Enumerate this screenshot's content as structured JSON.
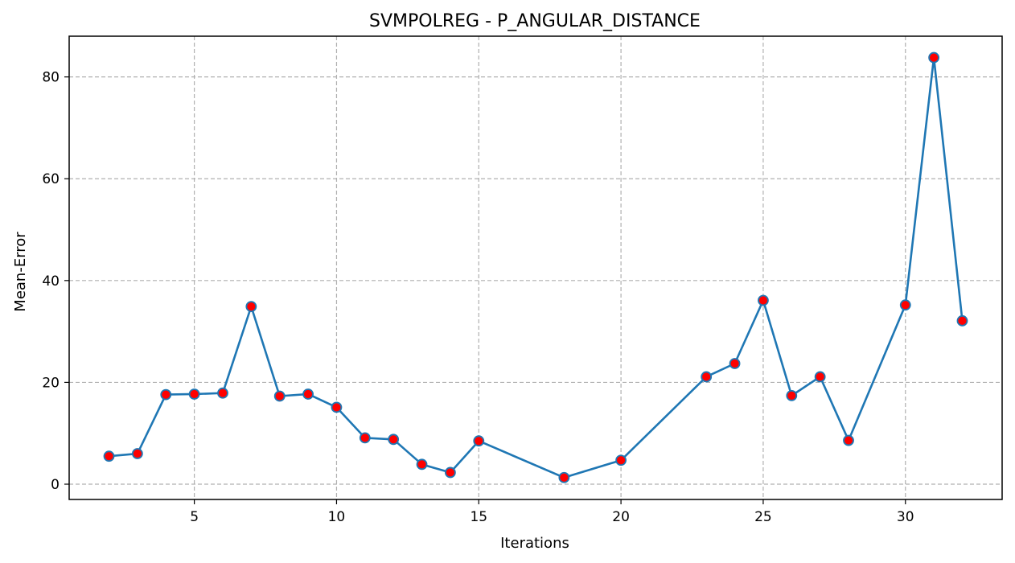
{
  "chart_data": {
    "type": "line",
    "title": "SVMPOLREG - P_ANGULAR_DISTANCE",
    "xlabel": "Iterations",
    "ylabel": "Mean-Error",
    "xlim": [
      0.6,
      33.4
    ],
    "ylim": [
      -3.0,
      88.0
    ],
    "xticks": [
      5,
      10,
      15,
      20,
      25,
      30
    ],
    "yticks": [
      0,
      20,
      40,
      60,
      80
    ],
    "grid": true,
    "line_color": "#1f77b4",
    "marker_color": "#ff0000",
    "marker_edge_color": "#1f77b4",
    "series": [
      {
        "x": [
          2,
          3,
          4,
          5,
          6,
          7,
          8,
          9,
          10,
          11,
          12,
          13,
          14,
          15,
          18,
          20,
          23,
          24,
          25,
          26,
          27,
          28,
          30,
          31,
          32
        ],
        "y": [
          5.5,
          6.0,
          17.6,
          17.7,
          17.9,
          34.9,
          17.3,
          17.7,
          15.1,
          9.1,
          8.8,
          3.9,
          2.3,
          8.5,
          1.3,
          4.7,
          21.1,
          23.7,
          36.1,
          17.4,
          21.1,
          8.6,
          35.2,
          83.8,
          32.1
        ]
      }
    ]
  }
}
